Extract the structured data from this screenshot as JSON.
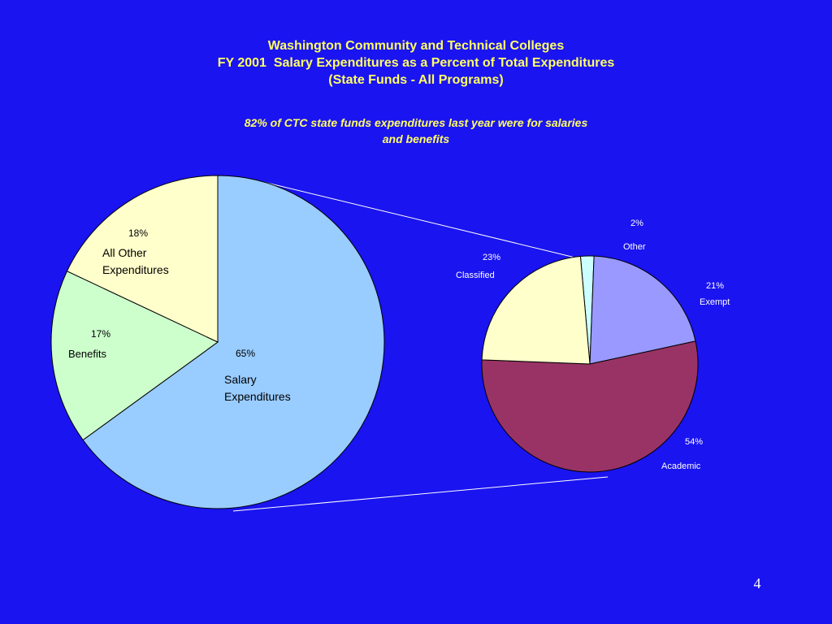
{
  "slide": {
    "title_lines": [
      "Washington Community and Technical Colleges",
      "FY 2001  Salary Expenditures as a Percent of Total Expenditures",
      "(State Funds - All Programs)"
    ],
    "subtitle_lines": [
      "82% of CTC state funds expenditures last year were for salaries",
      "and benefits"
    ],
    "page_number": "4"
  },
  "chart_data": [
    {
      "type": "pie",
      "slices": [
        {
          "label": "Salary Expenditures",
          "label_lines": [
            "Salary",
            "Expenditures"
          ],
          "percent_label": "65%",
          "value": 65,
          "color": "#99ccff"
        },
        {
          "label": "Benefits",
          "label_lines": [
            "Benefits"
          ],
          "percent_label": "17%",
          "value": 17,
          "color": "#ccffcc"
        },
        {
          "label": "All Other Expenditures",
          "label_lines": [
            "All Other",
            "Expenditures"
          ],
          "percent_label": "18%",
          "value": 18,
          "color": "#ffffcc"
        }
      ]
    },
    {
      "type": "pie",
      "slices": [
        {
          "label": "Other",
          "label_lines": [
            "Other"
          ],
          "percent_label": "2%",
          "value": 2,
          "color": "#ccffff"
        },
        {
          "label": "Exempt",
          "label_lines": [
            "Exempt"
          ],
          "percent_label": "21%",
          "value": 21,
          "color": "#9999ff"
        },
        {
          "label": "Academic",
          "label_lines": [
            "Academic"
          ],
          "percent_label": "54%",
          "value": 54,
          "color": "#993366"
        },
        {
          "label": "Classified",
          "label_lines": [
            "Classified"
          ],
          "percent_label": "23%",
          "value": 23,
          "color": "#ffffcc"
        }
      ]
    }
  ]
}
